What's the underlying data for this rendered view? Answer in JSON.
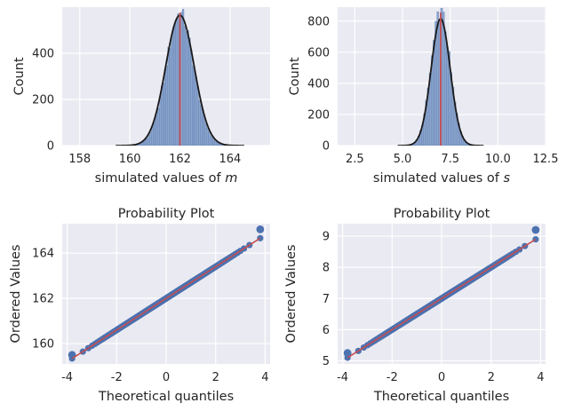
{
  "colors": {
    "axes_bg": "#eaeaf2",
    "grid": "#ffffff",
    "bar_fill": "#8da5cc",
    "bar_edge": "#4c72b0",
    "kde": "#1a1a1a",
    "mean_line": "#c44e52",
    "qq_points": "#4c72b0",
    "qq_fit": "#c44e52"
  },
  "chart_data": [
    {
      "type": "bar",
      "panel": "top-left",
      "title": "",
      "xlabel_prefix": "simulated values of ",
      "xlabel_var": "m",
      "ylabel": "Count",
      "xlim": [
        157.3,
        165.6
      ],
      "ylim": [
        0,
        600
      ],
      "xticks": [
        158,
        160,
        162,
        164
      ],
      "yticks": [
        0,
        200,
        400
      ],
      "grid": true,
      "hist": {
        "mean": 162.0,
        "sd": 0.55,
        "peak": 570,
        "bin_width": 0.065
      },
      "kde": {
        "mean": 162.0,
        "sd": 0.57,
        "peak": 565
      },
      "vline": 162.0
    },
    {
      "type": "bar",
      "panel": "top-right",
      "title": "",
      "xlabel_prefix": "simulated values of ",
      "xlabel_var": "s",
      "ylabel": "Count",
      "xlim": [
        1.6,
        12.5
      ],
      "ylim": [
        0,
        890
      ],
      "xticks": [
        2.5,
        5.0,
        7.5,
        10.0,
        12.5
      ],
      "yticks": [
        0,
        200,
        400,
        600,
        800
      ],
      "grid": true,
      "hist": {
        "mean": 7.0,
        "sd": 0.5,
        "peak": 850,
        "bin_width": 0.1
      },
      "kde": {
        "mean": 7.0,
        "sd": 0.5,
        "peak": 815
      },
      "vline": 7.0
    },
    {
      "type": "scatter",
      "panel": "bottom-left",
      "title": "Probability Plot",
      "xlabel": "Theoretical quantiles",
      "ylabel": "Ordered Values",
      "xlim": [
        -4.2,
        4.2
      ],
      "ylim": [
        159.1,
        165.3
      ],
      "xticks": [
        -4,
        -2,
        0,
        2,
        4
      ],
      "yticks": [
        160,
        162,
        164
      ],
      "grid": true,
      "fit": {
        "intercept": 162.0,
        "slope": 0.7
      },
      "qq_x_range": [
        -3.8,
        3.8
      ],
      "extremes": [
        {
          "x": -3.8,
          "y": 159.5
        },
        {
          "x": 3.8,
          "y": 165.05
        }
      ]
    },
    {
      "type": "scatter",
      "panel": "bottom-right",
      "title": "Probability Plot",
      "xlabel": "Theoretical quantiles",
      "ylabel": "Ordered Values",
      "xlim": [
        -4.2,
        4.2
      ],
      "ylim": [
        4.9,
        9.4
      ],
      "xticks": [
        -4,
        -2,
        0,
        2,
        4
      ],
      "yticks": [
        5,
        6,
        7,
        8,
        9
      ],
      "grid": true,
      "fit": {
        "intercept": 7.0,
        "slope": 0.5
      },
      "qq_x_range": [
        -3.8,
        3.8
      ],
      "extremes": [
        {
          "x": -3.8,
          "y": 5.25
        },
        {
          "x": 3.8,
          "y": 9.2
        }
      ]
    }
  ]
}
